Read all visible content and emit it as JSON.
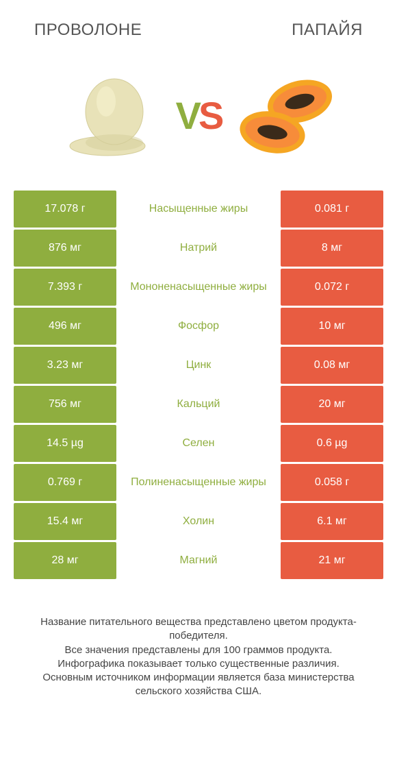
{
  "header": {
    "left_title": "ПРОВОЛОНЕ",
    "right_title": "ПАПАЙЯ",
    "vs_text_v": "V",
    "vs_text_s": "S"
  },
  "colors": {
    "green": "#8fae3f",
    "orange": "#e85c41",
    "vs_v": "#8fae3f",
    "vs_s": "#e85c41",
    "cheese_body": "#e8e2b8",
    "cheese_shadow": "#d4cd9a",
    "papaya_skin": "#f5a623",
    "papaya_flesh": "#f78c3a",
    "papaya_seeds": "#3a2a1a"
  },
  "rows": [
    {
      "left": "17.078 г",
      "label": "Насыщенные жиры",
      "right": "0.081 г",
      "winner": "left"
    },
    {
      "left": "876 мг",
      "label": "Натрий",
      "right": "8 мг",
      "winner": "left"
    },
    {
      "left": "7.393 г",
      "label": "Мононенасыщенные жиры",
      "right": "0.072 г",
      "winner": "left"
    },
    {
      "left": "496 мг",
      "label": "Фосфор",
      "right": "10 мг",
      "winner": "left"
    },
    {
      "left": "3.23 мг",
      "label": "Цинк",
      "right": "0.08 мг",
      "winner": "left"
    },
    {
      "left": "756 мг",
      "label": "Кальций",
      "right": "20 мг",
      "winner": "left"
    },
    {
      "left": "14.5 µg",
      "label": "Селен",
      "right": "0.6 µg",
      "winner": "left"
    },
    {
      "left": "0.769 г",
      "label": "Полиненасыщенные жиры",
      "right": "0.058 г",
      "winner": "left"
    },
    {
      "left": "15.4 мг",
      "label": "Холин",
      "right": "6.1 мг",
      "winner": "left"
    },
    {
      "left": "28 мг",
      "label": "Магний",
      "right": "21 мг",
      "winner": "left"
    }
  ],
  "footer": {
    "line1": "Название питательного вещества представлено цветом продукта-победителя.",
    "line2": "Все значения представлены для 100 граммов продукта.",
    "line3": "Инфографика показывает только существенные различия.",
    "line4": "Основным источником информации является база министерства сельского хозяйства США."
  }
}
